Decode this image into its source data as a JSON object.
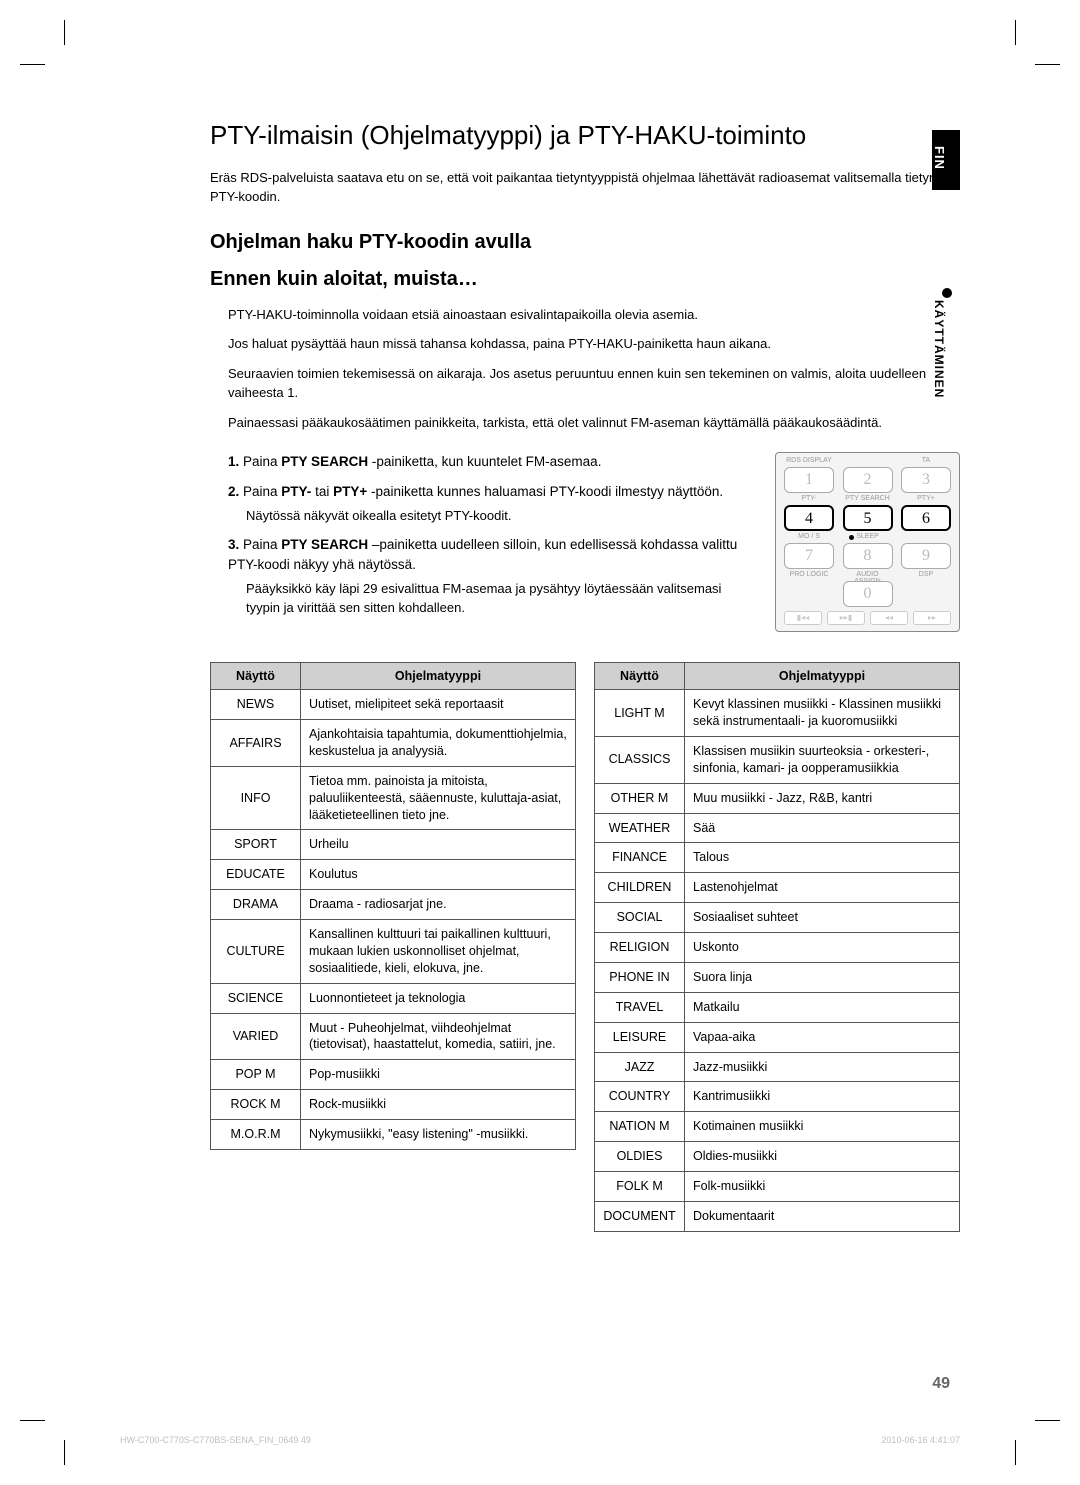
{
  "side_tab": "FIN",
  "side_label": "KÄYTTÄMINEN",
  "title": "PTY-ilmaisin (Ohjelmatyyppi) ja PTY-HAKU-toiminto",
  "intro": "Eräs RDS-palveluista saatava etu on se, että voit paikantaa tietyntyyppistä ohjelmaa lähettävät radioasemat valitsemalla tietyn PTY-koodin.",
  "h2": "Ohjelman haku PTY-koodin avulla",
  "h3": "Ennen kuin aloitat, muista…",
  "before": [
    "PTY-HAKU-toiminnolla voidaan etsiä ainoastaan esivalintapaikoilla olevia asemia.",
    "Jos haluat pysäyttää haun missä tahansa kohdassa, paina PTY-HAKU-painiketta haun aikana.",
    "Seuraavien toimien tekemisessä on aikaraja. Jos asetus peruuntuu ennen kuin sen tekeminen on valmis, aloita uudelleen vaiheesta 1.",
    "Painaessasi pääkaukosäätimen painikkeita, tarkista, että olet valinnut FM-aseman käyttämällä pääkaukosäädintä."
  ],
  "steps": [
    {
      "n": "1.",
      "pre": "Paina ",
      "bold": "PTY SEARCH",
      "post": " -painiketta, kun kuuntelet FM-asemaa."
    },
    {
      "n": "2.",
      "pre": "Paina ",
      "bold": "PTY-",
      "mid": " tai ",
      "bold2": "PTY+",
      "post": " -painiketta kunnes haluamasi PTY-koodi ilmestyy näyttöön.",
      "sub": "Näytössä näkyvät oikealla esitetyt PTY-koodit."
    },
    {
      "n": "3.",
      "pre": "Paina ",
      "bold": "PTY SEARCH",
      "post": " –painiketta uudelleen silloin, kun edellisessä kohdassa valittu PTY-koodi näkyy yhä näytössä.",
      "sub": "Pääyksikkö käy läpi 29 esivalittua FM-asemaa ja pysähtyy löytäessään valitsemasi tyypin ja virittää sen sitten kohdalleen."
    }
  ],
  "remote": {
    "row0_labels": [
      "RDS DISPLAY",
      "",
      "TA"
    ],
    "row1_keys": [
      "1",
      "2",
      "3"
    ],
    "row1_labels": [
      "PTY-",
      "PTY SEARCH",
      "PTY+"
    ],
    "row2_keys": [
      "4",
      "5",
      "6"
    ],
    "row2_labels": [
      "MO / S",
      "SLEEP",
      ""
    ],
    "row3_keys": [
      "7",
      "8",
      "9"
    ],
    "row3_labels": [
      "PRO LOGIC",
      "AUDIO ASSIGN",
      "DSP"
    ],
    "row4_key": "0",
    "transport": [
      "▮◂◂",
      "▸▸▮",
      "◂◂",
      "▸▸"
    ],
    "highlight": [
      "4",
      "5",
      "6"
    ]
  },
  "table_headers": {
    "col1": "Näyttö",
    "col2": "Ohjelmatyyppi"
  },
  "table_left": [
    [
      "NEWS",
      "Uutiset, mielipiteet sekä reportaasit"
    ],
    [
      "AFFAIRS",
      "Ajankohtaisia tapahtumia, dokumenttiohjelmia, keskustelua ja analyysiä."
    ],
    [
      "INFO",
      "Tietoa mm. painoista ja mitoista, paluuliikenteestä, sääennuste, kuluttaja-asiat, lääketieteellinen tieto jne."
    ],
    [
      "SPORT",
      "Urheilu"
    ],
    [
      "EDUCATE",
      "Koulutus"
    ],
    [
      "DRAMA",
      "Draama - radiosarjat jne."
    ],
    [
      "CULTURE",
      "Kansallinen kulttuuri tai paikallinen kulttuuri, mukaan lukien uskonnolliset ohjelmat, sosiaalitiede, kieli, elokuva, jne."
    ],
    [
      "SCIENCE",
      "Luonnontieteet ja teknologia"
    ],
    [
      "VARIED",
      "Muut - Puheohjelmat, viihdeohjelmat (tietovisat), haastattelut, komedia, satiiri, jne."
    ],
    [
      "POP M",
      "Pop-musiikki"
    ],
    [
      "ROCK M",
      "Rock-musiikki"
    ],
    [
      "M.O.R.M",
      "Nykymusiikki, \"easy listening\" -musiikki."
    ]
  ],
  "table_right": [
    [
      "LIGHT M",
      "Kevyt klassinen musiikki - Klassinen musiikki sekä instrumentaali- ja kuoromusiikki"
    ],
    [
      "CLASSICS",
      "Klassisen musiikin suurteoksia - orkesteri-, sinfonia, kamari- ja oopperamusiikkia"
    ],
    [
      "OTHER M",
      "Muu musiikki - Jazz, R&B, kantri"
    ],
    [
      "WEATHER",
      "Sää"
    ],
    [
      "FINANCE",
      "Talous"
    ],
    [
      "CHILDREN",
      "Lastenohjelmat"
    ],
    [
      "SOCIAL",
      "Sosiaaliset suhteet"
    ],
    [
      "RELIGION",
      "Uskonto"
    ],
    [
      "PHONE IN",
      "Suora linja"
    ],
    [
      "TRAVEL",
      "Matkailu"
    ],
    [
      "LEISURE",
      "Vapaa-aika"
    ],
    [
      "JAZZ",
      "Jazz-musiikki"
    ],
    [
      "COUNTRY",
      "Kantrimusiikki"
    ],
    [
      "NATION M",
      "Kotimainen musiikki"
    ],
    [
      "OLDIES",
      "Oldies-musiikki"
    ],
    [
      "FOLK M",
      "Folk-musiikki"
    ],
    [
      "DOCUMENT",
      "Dokumentaarit"
    ]
  ],
  "page_number": "49",
  "footer_left": "HW-C700-C770S-C770BS-SENA_FIN_0649   49",
  "footer_right": "2010-06-16   4:41:07",
  "colors": {
    "text": "#000000",
    "bg": "#ffffff",
    "th_bg": "#d0d0d0",
    "border": "#555555",
    "footer": "#bfbfbf",
    "pagenum": "#666666"
  }
}
